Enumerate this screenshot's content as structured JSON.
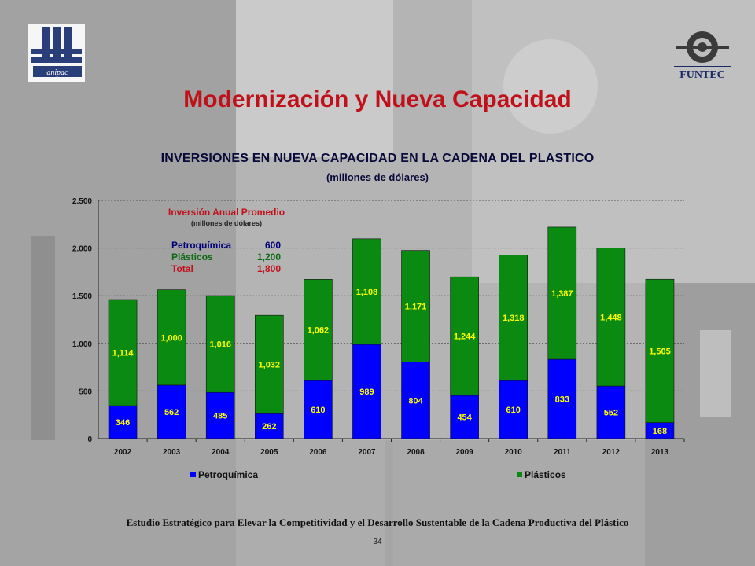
{
  "slide": {
    "title": "Modernización y Nueva Capacidad",
    "footer": "Estudio Estratégico para Elevar la Competitividad y el Desarrollo Sustentable de la Cadena Productiva del Plástico",
    "page_number": "34",
    "logo_left_text": "anipac",
    "logo_right_text": "FUNTEC"
  },
  "colors": {
    "title": "#c0101a",
    "petroquimica": "#0000ff",
    "plasticos": "#0b8a12",
    "value_label": "#ffff00",
    "annotation_title": "#c0101a",
    "annotation_petro": "#00007a",
    "annotation_plast": "#0b6a12"
  },
  "chart_data": {
    "type": "bar",
    "stacked": true,
    "title": "INVERSIONES EN NUEVA CAPACIDAD EN LA CADENA DEL PLASTICO",
    "subtitle": "(millones de dólares)",
    "categories": [
      "2002",
      "2003",
      "2004",
      "2005",
      "2006",
      "2007",
      "2008",
      "2009",
      "2010",
      "2011",
      "2012",
      "2013"
    ],
    "series": [
      {
        "name": "Petroquímica",
        "values": [
          346,
          562,
          485,
          262,
          610,
          989,
          804,
          454,
          610,
          833,
          552,
          168
        ],
        "labels": [
          "346",
          "562",
          "485",
          "262",
          "610",
          "989",
          "804",
          "454",
          "610",
          "833",
          "552",
          "168"
        ]
      },
      {
        "name": "Plásticos",
        "values": [
          1114,
          1000,
          1016,
          1032,
          1062,
          1108,
          1171,
          1244,
          1318,
          1387,
          1448,
          1505
        ],
        "labels": [
          "1,114",
          "1,000",
          "1,016",
          "1,032",
          "1,062",
          "1,108",
          "1,171",
          "1,244",
          "1,318",
          "1,387",
          "1,448",
          "1,505"
        ]
      }
    ],
    "ylim": [
      0,
      2500
    ],
    "yticks": [
      0,
      500,
      1000,
      1500,
      2000,
      2500
    ],
    "ytick_labels": [
      "0",
      "500",
      "1.000",
      "1.500",
      "2.000",
      "2.500"
    ],
    "grid": true,
    "legend": "bottom",
    "annotation": {
      "title": "Inversión Anual Promedio",
      "subtitle": "(millones de dólares)",
      "rows": [
        {
          "label": "Petroquímica",
          "value": "600"
        },
        {
          "label": "Plásticos",
          "value": "1,200"
        },
        {
          "label": "Total",
          "value": "1,800"
        }
      ]
    }
  }
}
